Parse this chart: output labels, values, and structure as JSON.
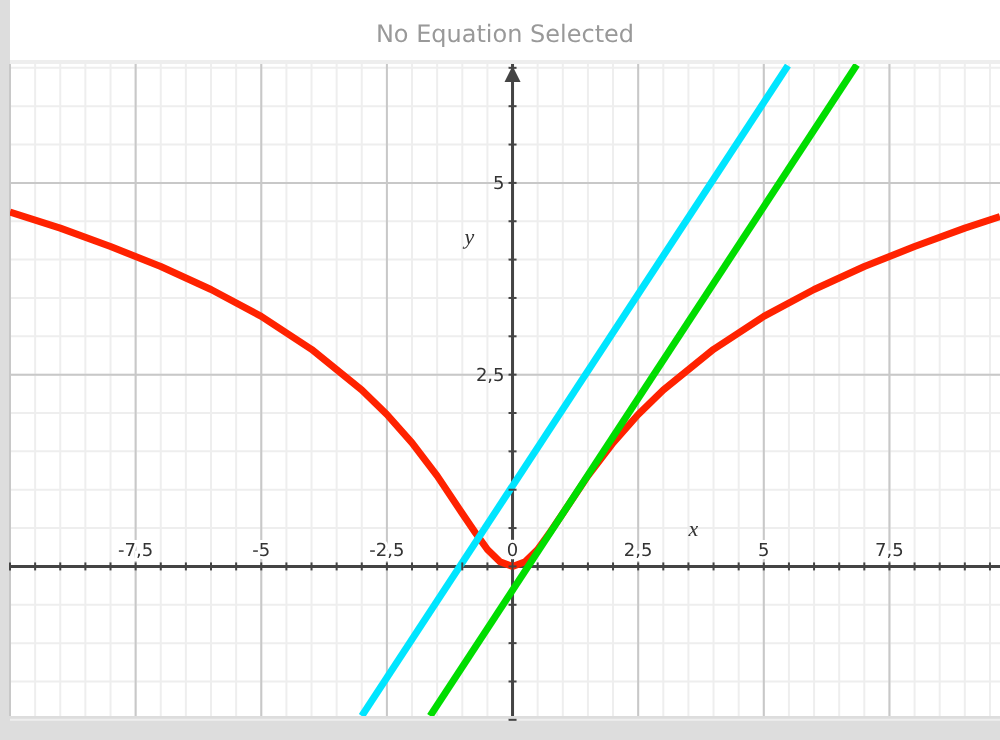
{
  "chart_data": {
    "type": "line",
    "title": "No Equation Selected",
    "xlabel": "x",
    "ylabel": "y",
    "xlim": [
      -10,
      9.7
    ],
    "ylim": [
      -1.95,
      6.55
    ],
    "xticks": [
      {
        "value": -7.5,
        "label": "-7,5"
      },
      -5,
      {
        "value": -2.5,
        "label": "-2,5"
      },
      0,
      {
        "value": 2.5,
        "label": "2,5"
      },
      5,
      {
        "value": 7.5,
        "label": "7,5"
      }
    ],
    "yticks": [
      {
        "value": 2.5,
        "label": "2,5"
      },
      5
    ],
    "grid": true,
    "marker": "none",
    "line_style": "solid",
    "series": [
      {
        "color": "#ff2200",
        "x": [
          -10,
          -9,
          -8,
          -7,
          -6,
          -5,
          -4,
          -3,
          -2.5,
          -2,
          -1.5,
          -1,
          -0.75,
          -0.5,
          -0.25,
          0,
          0.25,
          0.5,
          0.75,
          1,
          1.5,
          2,
          2.5,
          3,
          4,
          5,
          6,
          7,
          8,
          9,
          9.7
        ],
        "values": [
          4.62,
          4.41,
          4.17,
          3.91,
          3.61,
          3.26,
          2.83,
          2.3,
          1.98,
          1.61,
          1.18,
          0.69,
          0.45,
          0.22,
          0.06,
          0,
          0.06,
          0.22,
          0.45,
          0.69,
          1.18,
          1.61,
          1.98,
          2.3,
          2.83,
          3.26,
          3.61,
          3.91,
          4.17,
          4.41,
          4.56
        ]
      },
      {
        "color": "#00e5ff",
        "x": [
          -3,
          5.48
        ],
        "values": [
          -1.95,
          6.53
        ]
      },
      {
        "color": "#00dd00",
        "x": [
          -1.64,
          6.85
        ],
        "values": [
          -1.95,
          6.54
        ]
      }
    ]
  }
}
